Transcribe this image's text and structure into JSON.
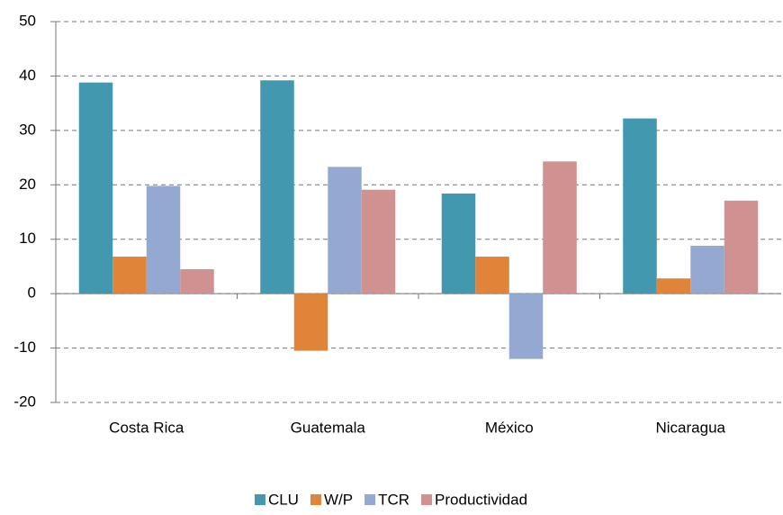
{
  "chart_data": {
    "type": "bar",
    "categories": [
      "Costa Rica",
      "Guatemala",
      "México",
      "Nicaragua"
    ],
    "series": [
      {
        "name": "CLU",
        "color": "#4198af",
        "values": [
          38.8,
          39.2,
          18.4,
          32.2
        ]
      },
      {
        "name": "W/P",
        "color": "#e0843a",
        "values": [
          6.8,
          -10.5,
          6.8,
          2.8
        ]
      },
      {
        "name": "TCR",
        "color": "#93a9d2",
        "values": [
          19.8,
          23.3,
          -12,
          8.8
        ]
      },
      {
        "name": "Productividad",
        "color": "#d09191",
        "values": [
          4.5,
          19.1,
          24.3,
          17.1
        ]
      }
    ],
    "ylim": [
      -20,
      50
    ],
    "yticks": [
      -20,
      -10,
      0,
      10,
      20,
      30,
      40,
      50
    ],
    "grid": true,
    "legend": "bottom"
  }
}
